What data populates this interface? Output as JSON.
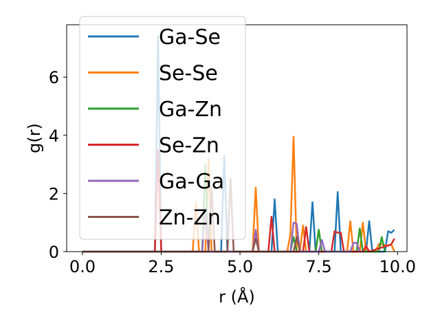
{
  "chart_data": {
    "type": "line",
    "xlabel": "r (Å)",
    "ylabel": "g(r)",
    "xlim": [
      -0.5,
      10.3
    ],
    "ylim": [
      0,
      7.8
    ],
    "xticks": [
      0.0,
      2.5,
      5.0,
      7.5,
      10.0
    ],
    "xtick_labels": [
      "0.0",
      "2.5",
      "5.0",
      "7.5",
      "10.0"
    ],
    "yticks": [
      0,
      2,
      4,
      6
    ],
    "ytick_labels": [
      "0",
      "2",
      "4",
      "6"
    ],
    "grid": false,
    "legend_position": "upper-left",
    "series": [
      {
        "name": "Ga-Se",
        "color": "#1f77b4",
        "x": [
          0,
          2.2,
          2.3,
          2.4,
          2.5,
          2.6,
          4.3,
          4.4,
          4.5,
          4.6,
          4.7,
          5.9,
          6.0,
          6.1,
          6.2,
          7.1,
          7.2,
          7.3,
          7.4,
          8.0,
          8.1,
          8.2,
          8.3,
          8.9,
          9.0,
          9.1,
          9.2,
          9.6,
          9.7,
          9.8,
          9.9
        ],
        "y": [
          0,
          0,
          0,
          7.4,
          0,
          0,
          0,
          0,
          3.3,
          0,
          0,
          0,
          0,
          1.8,
          0,
          0,
          0,
          1.7,
          0,
          0,
          2.05,
          0,
          0,
          0,
          0,
          1.05,
          0,
          0,
          0.7,
          0.65,
          0.75
        ]
      },
      {
        "name": "Se-Se",
        "color": "#ff7f0e",
        "x": [
          0,
          3.5,
          3.6,
          3.7,
          3.9,
          4.0,
          4.1,
          5.3,
          5.4,
          5.5,
          5.6,
          6.5,
          6.6,
          6.7,
          6.8,
          6.9,
          7.0,
          7.1,
          7.4,
          7.5,
          7.6,
          8.4,
          8.5,
          8.6,
          8.8,
          8.9,
          9.0,
          9.3,
          9.4,
          9.5,
          9.7,
          9.8,
          9.9
        ],
        "y": [
          0,
          0,
          1.7,
          0,
          0,
          3.2,
          0,
          0,
          0,
          2.2,
          0,
          0,
          0.6,
          3.95,
          0,
          0,
          0.9,
          0,
          0,
          0.75,
          0,
          0,
          1.05,
          0,
          0,
          1.0,
          0,
          0,
          0.25,
          0.25,
          0.2,
          0.25,
          0
        ]
      },
      {
        "name": "Ga-Zn",
        "color": "#2ca02c",
        "x": [
          0,
          3.8,
          3.9,
          4.0,
          6.6,
          6.7,
          6.8,
          7.4,
          7.5,
          7.6,
          8.7,
          8.8,
          8.9,
          9.4,
          9.5,
          9.6
        ],
        "y": [
          0,
          0,
          3.0,
          0,
          0,
          0.5,
          0,
          0,
          0.75,
          0,
          0,
          0.8,
          0,
          0,
          0.5,
          0
        ]
      },
      {
        "name": "Se-Zn",
        "color": "#d62728",
        "x": [
          0,
          2.3,
          2.4,
          2.5,
          5.8,
          5.9,
          6.0,
          6.1,
          7.0,
          7.1,
          7.2,
          7.3,
          7.9,
          8.0,
          8.1,
          8.2,
          8.3,
          8.9,
          9.0,
          9.1,
          9.8,
          9.9
        ],
        "y": [
          0,
          0,
          3.5,
          0,
          0,
          0,
          1.2,
          0,
          0,
          0.85,
          0,
          0,
          0,
          0.7,
          0.65,
          0.65,
          0,
          0,
          0.2,
          0,
          0.25,
          0.45
        ]
      },
      {
        "name": "Ga-Ga",
        "color": "#9467bd",
        "x": [
          0,
          3.8,
          3.9,
          4.0,
          5.4,
          5.5,
          5.6,
          6.6,
          6.7,
          6.8,
          6.9,
          7.5,
          7.6,
          7.7,
          8.5,
          8.6,
          8.7,
          8.8
        ],
        "y": [
          0,
          0,
          1.5,
          0,
          0,
          0.75,
          0,
          0,
          1.0,
          0.95,
          0,
          0,
          0.4,
          0,
          0,
          0.3,
          0.3,
          0
        ]
      },
      {
        "name": "Zn-Zn",
        "color": "#8c564b",
        "x": [
          0,
          4.0,
          4.1,
          4.2,
          4.6,
          4.7,
          4.8,
          5.4,
          5.5,
          5.6,
          6.7,
          6.8,
          6.9
        ],
        "y": [
          0,
          0,
          2.2,
          0,
          0,
          2.5,
          0,
          0,
          0.45,
          0,
          0,
          0.5,
          0
        ]
      }
    ]
  }
}
